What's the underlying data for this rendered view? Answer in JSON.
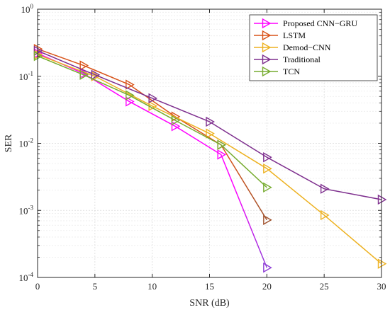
{
  "chart_data": {
    "type": "line",
    "title": "",
    "xlabel": "SNR (dB)",
    "ylabel": "SER",
    "xlim": [
      0,
      30
    ],
    "ylim": [
      0.0001,
      1
    ],
    "yscale": "log",
    "grid": true,
    "legend_position": "top-right",
    "x_ticks": [
      0,
      5,
      10,
      15,
      20,
      25,
      30
    ],
    "y_ticks": [
      {
        "value": 1,
        "base": "10",
        "exp": "0"
      },
      {
        "value": 0.1,
        "base": "10",
        "exp": "-1"
      },
      {
        "value": 0.01,
        "base": "10",
        "exp": "-2"
      },
      {
        "value": 0.001,
        "base": "10",
        "exp": "-3"
      },
      {
        "value": 0.0001,
        "base": "10",
        "exp": "-4"
      }
    ],
    "series": [
      {
        "name": "Proposed CNN−GRU",
        "color": "#ff00ff",
        "color_end": "#8e3fd6",
        "gradient": true,
        "x": [
          0,
          4,
          8,
          12,
          16,
          20
        ],
        "y": [
          0.22,
          0.11,
          0.042,
          0.018,
          0.0068,
          0.00014
        ]
      },
      {
        "name": "LSTM",
        "color": "#d95319",
        "color_end": "#a0522d",
        "gradient": true,
        "x": [
          0,
          4,
          8,
          12,
          16,
          20
        ],
        "y": [
          0.255,
          0.145,
          0.075,
          0.025,
          0.0095,
          0.00072
        ]
      },
      {
        "name": "Demod−CNN",
        "color": "#edb120",
        "gradient": false,
        "x": [
          0,
          5,
          10,
          15,
          20,
          25,
          30
        ],
        "y": [
          0.21,
          0.1,
          0.036,
          0.014,
          0.0042,
          0.00085,
          0.00016
        ]
      },
      {
        "name": "Traditional",
        "color": "#7e2f8e",
        "gradient": false,
        "x": [
          0,
          5,
          10,
          15,
          20,
          25,
          30
        ],
        "y": [
          0.24,
          0.105,
          0.047,
          0.021,
          0.0062,
          0.0021,
          0.00145
        ]
      },
      {
        "name": "TCN",
        "color": "#77ac30",
        "gradient": false,
        "x": [
          0,
          4,
          8,
          12,
          16,
          20
        ],
        "y": [
          0.2,
          0.105,
          0.052,
          0.022,
          0.0095,
          0.0022
        ]
      }
    ]
  }
}
